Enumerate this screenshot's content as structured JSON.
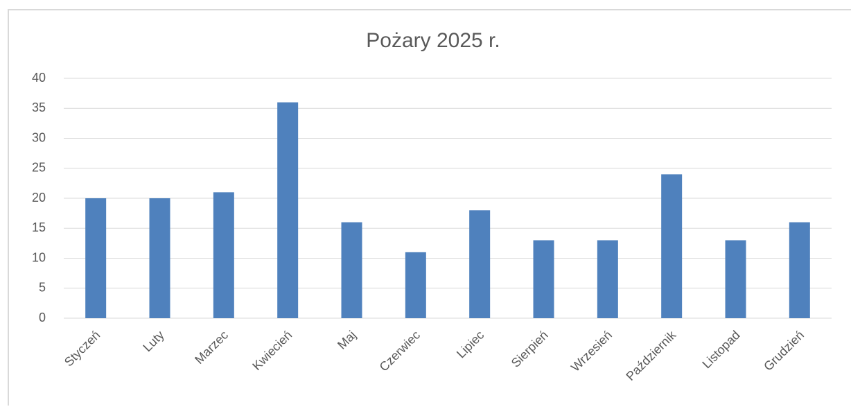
{
  "chart_data": {
    "type": "bar",
    "title": "Pożary 2025 r.",
    "categories": [
      "Styczeń",
      "Luty",
      "Marzec",
      "Kwiecień",
      "Maj",
      "Czerwiec",
      "Lipiec",
      "Sierpień",
      "Wrzesień",
      "Październik",
      "Listopad",
      "Grudzień"
    ],
    "values": [
      20,
      20,
      21,
      36,
      16,
      11,
      18,
      13,
      13,
      24,
      13,
      16
    ],
    "color": "#4f81bd",
    "ylim": [
      0,
      40
    ],
    "yticks": [
      0,
      5,
      10,
      15,
      20,
      25,
      30,
      35,
      40
    ],
    "grid": true
  }
}
